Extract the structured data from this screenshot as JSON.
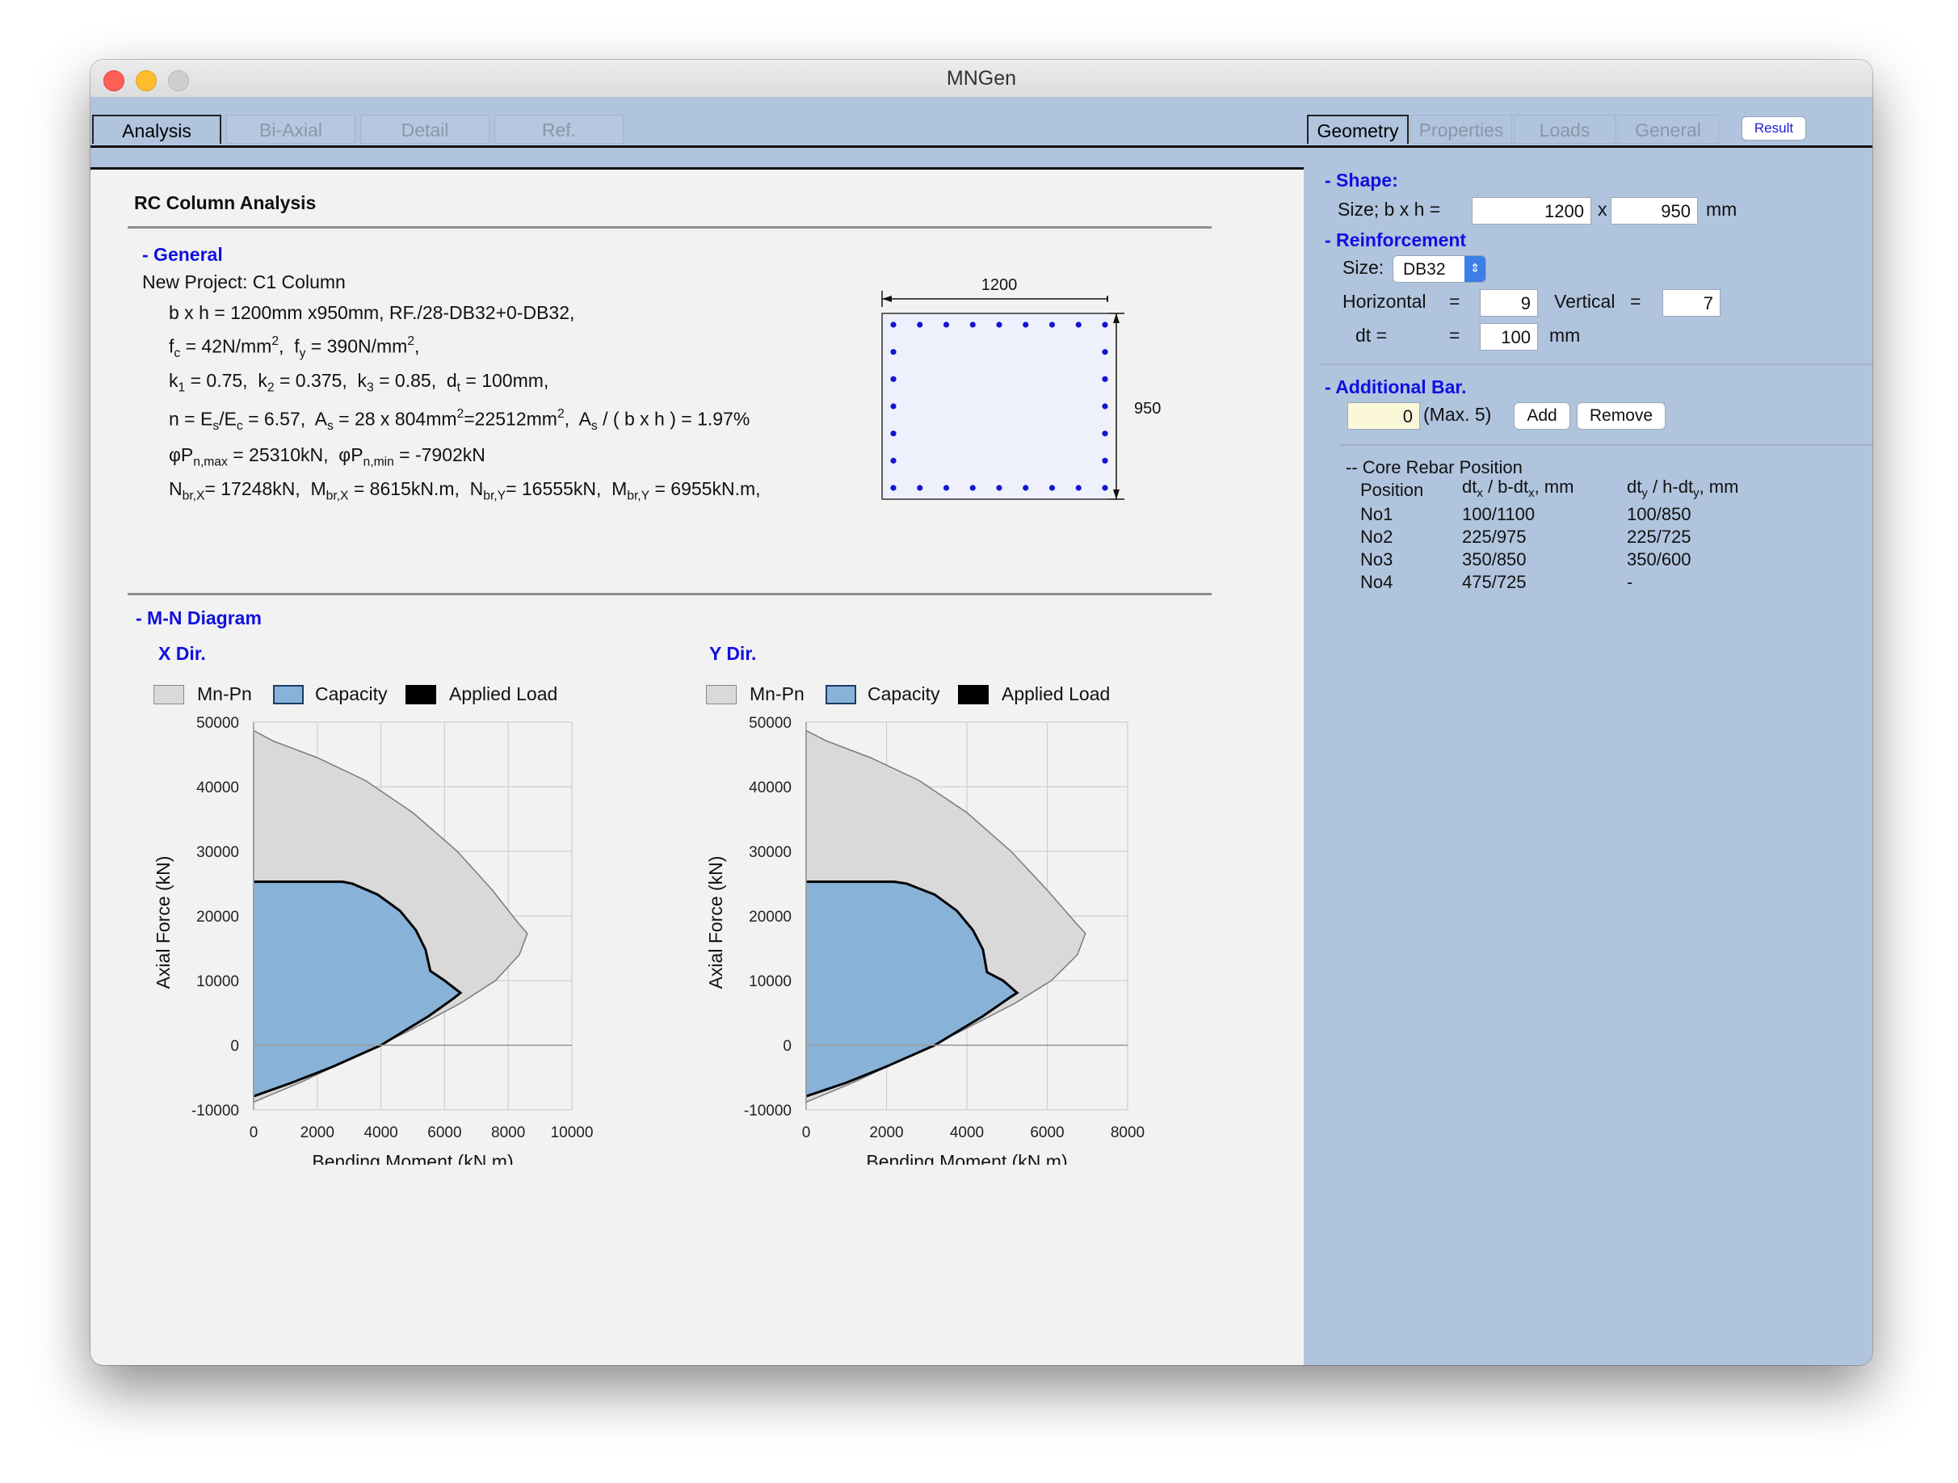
{
  "window": {
    "title": "MNGen"
  },
  "left_tabs": [
    "Analysis",
    "Bi-Axial",
    "Detail",
    "Ref."
  ],
  "right_tabs": [
    "Geometry",
    "Properties",
    "Loads",
    "General"
  ],
  "result_button": "Result",
  "analysis": {
    "title": "RC Column Analysis",
    "general_header": "- General",
    "project": "New Project: C1 Column",
    "line1": "b x h = 1200mm x950mm,  RF./28-DB32+0-DB32,",
    "mn_header": "- M-N Diagram",
    "section": {
      "width_label": "1200",
      "height_label": "950"
    }
  },
  "geometry": {
    "shape_header": "- Shape:",
    "size_label": "Size; b x h  =",
    "b": "1200",
    "x_label": "x",
    "h": "950",
    "unit": "mm",
    "reinf_header": "- Reinforcement",
    "bar_size_label": "Size:",
    "bar_size": "DB32",
    "horizontal_label": "Horizontal",
    "eq": "=",
    "horizontal": "9",
    "vertical_label": "Vertical",
    "vertical": "7",
    "dt_label": "dt  =",
    "dt": "100",
    "add_header": "- Additional Bar.",
    "add_value": "0",
    "max_label": "(Max. 5)",
    "add_btn": "Add",
    "remove_btn": "Remove",
    "core_header": "-- Core Rebar Position",
    "col_position": "Position",
    "core_rows": [
      [
        "No1",
        "100/1100",
        "100/850"
      ],
      [
        "No2",
        "225/975",
        "225/725"
      ],
      [
        "No3",
        "350/850",
        "350/600"
      ],
      [
        "No4",
        "475/725",
        "-"
      ]
    ]
  },
  "colors": {
    "mn_fill": "#d9d9d9",
    "capacity_fill": "#88b2d8",
    "applied": "#000000",
    "panel": "#b0c4de",
    "header_blue": "#1010e0",
    "rebar": "#1414d2"
  },
  "chart_data": [
    {
      "type": "area",
      "title": "X Dir.",
      "xlabel": "Bending Moment (kN.m)",
      "ylabel": "Axial Force (kN)",
      "xlim": [
        0,
        10000
      ],
      "ylim": [
        -10000,
        50000
      ],
      "xticks": [
        0,
        2000,
        4000,
        6000,
        8000,
        10000
      ],
      "yticks": [
        -10000,
        0,
        10000,
        20000,
        30000,
        40000,
        50000
      ],
      "grid": true,
      "legend": [
        "Mn-Pn",
        "Capacity",
        "Applied Load"
      ],
      "series": [
        {
          "name": "Mn-Pn",
          "points": [
            [
              0,
              48700
            ],
            [
              600,
              47100
            ],
            [
              2000,
              44500
            ],
            [
              3500,
              41000
            ],
            [
              5000,
              36000
            ],
            [
              6400,
              30000
            ],
            [
              7500,
              24000
            ],
            [
              8300,
              19000
            ],
            [
              8600,
              17300
            ],
            [
              8350,
              14000
            ],
            [
              7600,
              10000
            ],
            [
              6500,
              6500
            ],
            [
              4800,
              2000
            ],
            [
              3000,
              -2200
            ],
            [
              1500,
              -5700
            ],
            [
              0,
              -8800
            ]
          ]
        },
        {
          "name": "Capacity",
          "points": [
            [
              0,
              25300
            ],
            [
              2800,
              25300
            ],
            [
              3100,
              25000
            ],
            [
              3900,
              23300
            ],
            [
              4600,
              20800
            ],
            [
              5100,
              17800
            ],
            [
              5400,
              14800
            ],
            [
              5550,
              11500
            ],
            [
              6000,
              10000
            ],
            [
              6500,
              8100
            ],
            [
              6300,
              7300
            ],
            [
              5500,
              4500
            ],
            [
              4000,
              0
            ],
            [
              2500,
              -3300
            ],
            [
              1200,
              -5800
            ],
            [
              0,
              -7900
            ]
          ]
        }
      ]
    },
    {
      "type": "area",
      "title": "Y Dir.",
      "xlabel": "Bending Moment (kN.m)",
      "ylabel": "Axial Force (kN)",
      "xlim": [
        0,
        8000
      ],
      "ylim": [
        -10000,
        50000
      ],
      "xticks": [
        0,
        2000,
        4000,
        6000,
        8000
      ],
      "yticks": [
        -10000,
        0,
        10000,
        20000,
        30000,
        40000,
        50000
      ],
      "grid": true,
      "legend": [
        "Mn-Pn",
        "Capacity",
        "Applied Load"
      ],
      "series": [
        {
          "name": "Mn-Pn",
          "points": [
            [
              0,
              48700
            ],
            [
              500,
              47100
            ],
            [
              1600,
              44500
            ],
            [
              2800,
              41000
            ],
            [
              4000,
              36000
            ],
            [
              5100,
              30000
            ],
            [
              6000,
              24000
            ],
            [
              6700,
              19000
            ],
            [
              6950,
              17300
            ],
            [
              6750,
              14000
            ],
            [
              6100,
              10000
            ],
            [
              5200,
              6500
            ],
            [
              3800,
              2000
            ],
            [
              2400,
              -2200
            ],
            [
              1200,
              -5700
            ],
            [
              0,
              -8800
            ]
          ]
        },
        {
          "name": "Capacity",
          "points": [
            [
              0,
              25300
            ],
            [
              2200,
              25300
            ],
            [
              2500,
              25000
            ],
            [
              3200,
              23300
            ],
            [
              3750,
              20800
            ],
            [
              4150,
              17800
            ],
            [
              4400,
              14800
            ],
            [
              4500,
              11300
            ],
            [
              4900,
              10000
            ],
            [
              5250,
              8100
            ],
            [
              5050,
              7300
            ],
            [
              4400,
              4500
            ],
            [
              3200,
              0
            ],
            [
              2000,
              -3300
            ],
            [
              1000,
              -5800
            ],
            [
              0,
              -7900
            ]
          ]
        }
      ]
    }
  ]
}
